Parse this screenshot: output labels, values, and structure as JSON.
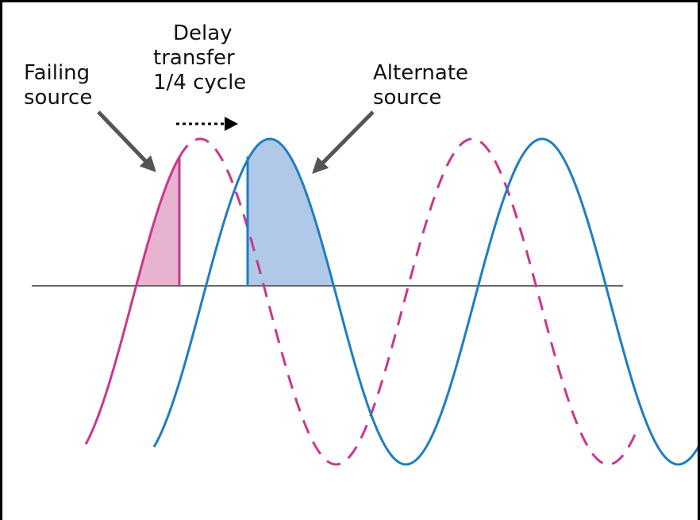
{
  "labels": {
    "failing": [
      "Failing",
      "source"
    ],
    "delay": [
      "Delay",
      "transfer",
      "1/4 cycle"
    ],
    "alternate": [
      "Alternate",
      "source"
    ]
  }
}
